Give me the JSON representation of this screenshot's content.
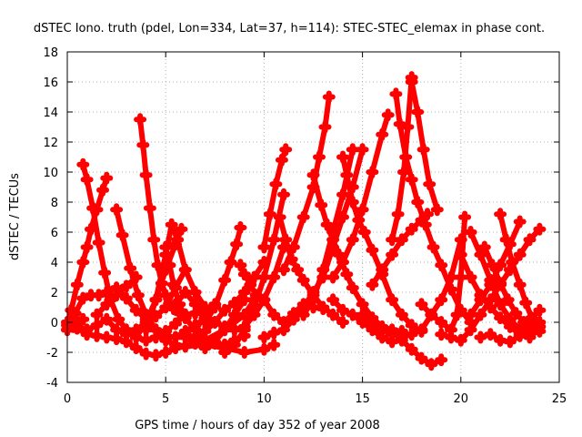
{
  "chart_data": {
    "type": "scatter",
    "title": "dSTEC Iono. truth (pdel, Lon=334, Lat=37, h=114): STEC-STEC_elemax in phase cont.",
    "xlabel": "GPS time / hours of day 352 of year 2008",
    "ylabel": "dSTEC  / TECUs",
    "xlim": [
      0,
      25
    ],
    "ylim": [
      -4,
      18
    ],
    "xticks": [
      "0",
      "5",
      "10",
      "15",
      "20",
      "25"
    ],
    "yticks": [
      "-4",
      "-2",
      "0",
      "2",
      "4",
      "6",
      "8",
      "10",
      "12",
      "14",
      "16",
      "18"
    ],
    "grid": true,
    "marker_color": "#ff0000",
    "series": [
      {
        "x": [
          0.0,
          0.2,
          0.5,
          0.8,
          1.0,
          1.2,
          1.5,
          1.8,
          2.0
        ],
        "y": [
          -0.2,
          0.8,
          2.5,
          4.0,
          5.0,
          6.2,
          7.5,
          8.8,
          9.6
        ]
      },
      {
        "x": [
          0.8,
          1.0,
          1.3,
          1.6,
          1.9,
          2.2,
          2.6,
          3.0,
          3.5,
          4.0,
          4.5,
          5.0,
          5.5,
          6.0,
          6.5
        ],
        "y": [
          10.5,
          9.5,
          7.6,
          5.3,
          3.3,
          1.5,
          0.2,
          -0.5,
          -1.0,
          -1.2,
          -1.0,
          -0.6,
          -0.1,
          0.5,
          0.6
        ]
      },
      {
        "x": [
          0.0,
          0.5,
          1.0,
          1.5,
          2.0,
          2.5,
          3.0,
          3.5,
          4.0,
          4.5,
          5.0,
          5.5,
          6.0
        ],
        "y": [
          0.0,
          -0.3,
          -0.5,
          -0.2,
          0.2,
          -0.5,
          -0.8,
          -0.5,
          0.0,
          0.4,
          1.0,
          2.3,
          3.5
        ]
      },
      {
        "x": [
          0.0,
          0.4,
          0.8,
          1.2,
          1.6,
          2.0,
          2.5,
          3.0,
          3.5,
          4.0,
          4.5,
          5.0,
          5.5,
          6.0,
          6.5,
          7.0,
          7.5
        ],
        "y": [
          -0.5,
          0.6,
          1.6,
          1.8,
          1.8,
          2.0,
          2.3,
          1.6,
          0.8,
          0.2,
          -0.5,
          -0.9,
          -1.0,
          -0.6,
          -0.2,
          0.3,
          1.2
        ]
      },
      {
        "x": [
          0.0,
          0.3,
          0.6,
          0.8
        ],
        "y": [
          -0.5,
          -0.3,
          0.0,
          0.2
        ]
      },
      {
        "x": [
          2.5,
          2.8,
          3.2,
          3.6,
          4.0,
          4.5,
          5.0,
          5.5,
          6.0,
          7.0,
          8.0,
          9.0,
          9.5
        ],
        "y": [
          7.5,
          5.8,
          3.6,
          1.8,
          0.5,
          -0.5,
          -1.2,
          -1.5,
          -1.6,
          -1.2,
          -0.5,
          0.5,
          1.5
        ]
      },
      {
        "x": [
          1.5,
          2.0,
          2.5,
          3.0,
          3.5
        ],
        "y": [
          0.5,
          1.2,
          1.8,
          2.4,
          3.0
        ]
      },
      {
        "x": [
          3.7,
          3.85,
          4.0,
          4.2,
          4.4,
          4.6,
          4.8,
          5.0,
          5.2,
          5.4,
          5.7,
          6.0,
          6.5,
          7.0
        ],
        "y": [
          13.5,
          11.8,
          9.8,
          7.6,
          5.5,
          3.8,
          2.6,
          1.8,
          1.3,
          0.9,
          0.6,
          0.5,
          0.6,
          0.8
        ]
      },
      {
        "x": [
          0.0,
          0.5,
          1.0,
          1.5,
          2.0,
          2.5,
          3.0,
          3.5,
          4.0,
          4.5,
          5.0,
          5.5,
          6.0,
          7.0,
          8.0,
          9.0,
          10.0,
          10.5
        ],
        "y": [
          0.0,
          -0.4,
          -0.8,
          -0.9,
          -1.0,
          -1.1,
          -1.3,
          -1.7,
          -2.1,
          -2.2,
          -2.0,
          -1.7,
          -1.6,
          -1.5,
          -1.7,
          -2.0,
          -1.8,
          -1.5
        ]
      },
      {
        "x": [
          3.5,
          4.0,
          4.5,
          5.0,
          5.3,
          5.6,
          6.0,
          6.5,
          7.0
        ],
        "y": [
          -1.0,
          0.0,
          1.5,
          4.5,
          6.5,
          5.5,
          3.5,
          2.0,
          1.0
        ]
      },
      {
        "x": [
          4.0,
          4.5,
          5.0,
          5.5,
          5.8
        ],
        "y": [
          -0.5,
          1.5,
          3.5,
          5.2,
          6.2
        ]
      },
      {
        "x": [
          5.0,
          5.2,
          5.4,
          5.7,
          6.0,
          6.5,
          7.0,
          7.5,
          8.0,
          8.5,
          9.0
        ],
        "y": [
          5.0,
          3.8,
          2.5,
          1.2,
          0.3,
          -0.5,
          -1.2,
          -1.4,
          -1.5,
          -1.2,
          -0.9
        ]
      },
      {
        "x": [
          5.5,
          6.0,
          6.5,
          7.0,
          7.5,
          8.0,
          8.5,
          9.0,
          9.5,
          10.0,
          10.5,
          11.0
        ],
        "y": [
          1.2,
          2.0,
          1.2,
          0.5,
          0.0,
          -0.3,
          -0.5,
          -0.3,
          0.5,
          1.5,
          3.0,
          5.0
        ]
      },
      {
        "x": [
          6.0,
          6.5,
          7.0,
          7.5,
          8.0,
          8.5,
          9.0
        ],
        "y": [
          -1.0,
          -1.4,
          -1.7,
          -1.3,
          -0.5,
          0.5,
          1.5
        ]
      },
      {
        "x": [
          7.0,
          7.5,
          8.0,
          8.3,
          8.6,
          8.8
        ],
        "y": [
          0.0,
          1.0,
          2.8,
          4.0,
          5.2,
          6.3
        ]
      },
      {
        "x": [
          6.0,
          6.5,
          7.0,
          7.5,
          8.0,
          8.5,
          9.0,
          9.5,
          10.0
        ],
        "y": [
          -0.8,
          -1.0,
          -0.6,
          0.0,
          0.8,
          1.3,
          2.0,
          3.0,
          4.0
        ]
      },
      {
        "x": [
          8.8,
          9.0,
          9.3,
          9.6,
          10.0,
          10.5,
          11.0,
          11.5,
          12.0,
          12.5,
          13.0
        ],
        "y": [
          3.8,
          3.2,
          2.5,
          1.8,
          1.5,
          0.5,
          0.0,
          0.6,
          1.2,
          1.0,
          0.9
        ]
      },
      {
        "x": [
          8.0,
          8.5,
          9.0,
          9.5,
          10.0,
          10.5,
          11.0
        ],
        "y": [
          -2.0,
          -1.5,
          -0.5,
          1.0,
          3.0,
          5.5,
          8.5
        ]
      },
      {
        "x": [
          10.0,
          10.3,
          10.6,
          10.9,
          11.1
        ],
        "y": [
          5.0,
          7.2,
          9.2,
          10.8,
          11.5
        ]
      },
      {
        "x": [
          10.8,
          11.1,
          11.4,
          11.7,
          12.0,
          12.5,
          13.0,
          13.5,
          14.0
        ],
        "y": [
          7.0,
          5.5,
          4.2,
          3.5,
          2.8,
          1.8,
          1.0,
          0.5,
          0.0
        ]
      },
      {
        "x": [
          11.0,
          11.5,
          12.0,
          12.5,
          12.8,
          13.1,
          13.3
        ],
        "y": [
          3.5,
          5.0,
          7.0,
          9.0,
          11.0,
          13.0,
          15.0
        ]
      },
      {
        "x": [
          10.0,
          10.5,
          11.0,
          11.5,
          12.0,
          12.5,
          13.0,
          13.5,
          14.0,
          14.5,
          15.0
        ],
        "y": [
          -1.0,
          -0.7,
          -0.5,
          0.2,
          1.0,
          2.0,
          3.0,
          5.0,
          7.0,
          9.0,
          11.5
        ]
      },
      {
        "x": [
          12.5,
          12.9,
          13.2,
          13.5,
          13.8,
          14.2,
          14.5,
          15.0,
          15.5,
          16.0,
          16.5,
          17.0
        ],
        "y": [
          9.8,
          7.8,
          6.5,
          5.5,
          4.5,
          3.2,
          2.3,
          1.2,
          0.3,
          -0.3,
          -0.5,
          -0.6
        ]
      },
      {
        "x": [
          12.0,
          12.5,
          13.0,
          13.5,
          14.0,
          14.5
        ],
        "y": [
          0.5,
          1.5,
          3.5,
          6.0,
          8.5,
          11.5
        ]
      },
      {
        "x": [
          13.5,
          14.0,
          14.5,
          15.0,
          15.5,
          16.0,
          16.5,
          17.0,
          17.5,
          18.0,
          18.5,
          19.0
        ],
        "y": [
          1.5,
          0.8,
          0.5,
          0.0,
          -0.5,
          -1.0,
          -1.3,
          -1.2,
          -1.8,
          -2.4,
          -2.8,
          -2.5
        ]
      },
      {
        "x": [
          14.0,
          14.2,
          14.5,
          14.8,
          15.1,
          15.5,
          16.0,
          16.5,
          17.0,
          17.5,
          18.0
        ],
        "y": [
          11.0,
          9.8,
          8.0,
          6.8,
          6.0,
          4.8,
          3.2,
          1.5,
          0.5,
          -0.2,
          -0.6
        ]
      },
      {
        "x": [
          13.5,
          14.0,
          14.5,
          15.0,
          15.5,
          16.0,
          16.3
        ],
        "y": [
          3.0,
          4.0,
          5.5,
          7.5,
          10.0,
          12.5,
          13.8
        ]
      },
      {
        "x": [
          15.0,
          15.5,
          16.0,
          16.5,
          17.0,
          17.5,
          18.0,
          18.5,
          19.0,
          19.5,
          20.0
        ],
        "y": [
          0.5,
          -0.2,
          -0.5,
          -0.8,
          -1.0,
          -0.8,
          -0.5,
          0.5,
          1.5,
          3.0,
          5.5
        ]
      },
      {
        "x": [
          16.7,
          16.9,
          17.2,
          17.5,
          17.8,
          18.2,
          18.6,
          19.0,
          19.5,
          20.0,
          20.5
        ],
        "y": [
          15.2,
          13.2,
          11.0,
          9.5,
          8.0,
          6.5,
          5.0,
          3.8,
          2.2,
          0.8,
          0.0
        ]
      },
      {
        "x": [
          16.5,
          16.8,
          17.1,
          17.3,
          17.5
        ],
        "y": [
          5.5,
          7.2,
          10.0,
          13.0,
          16.3
        ]
      },
      {
        "x": [
          17.5,
          17.8,
          18.1,
          18.4,
          18.8
        ],
        "y": [
          16.0,
          14.0,
          11.5,
          9.2,
          7.5
        ]
      },
      {
        "x": [
          15.5,
          16.0,
          16.5,
          17.0,
          17.5,
          18.0,
          18.3
        ],
        "y": [
          2.5,
          3.5,
          4.5,
          5.5,
          6.2,
          6.8,
          7.2
        ]
      },
      {
        "x": [
          18.0,
          18.5,
          19.0,
          19.5,
          19.8,
          20.0,
          20.2
        ],
        "y": [
          1.2,
          0.5,
          0.0,
          -0.5,
          0.5,
          3.0,
          7.0
        ]
      },
      {
        "x": [
          19.0,
          19.5,
          20.0,
          20.5,
          21.0,
          21.5,
          22.0,
          22.5,
          23.0,
          23.5,
          24.0
        ],
        "y": [
          -0.8,
          -1.0,
          -1.2,
          -0.5,
          0.5,
          1.5,
          2.5,
          3.5,
          4.5,
          5.5,
          6.2
        ]
      },
      {
        "x": [
          20.0,
          20.5,
          21.0,
          21.5,
          22.0,
          22.5,
          23.0,
          23.5
        ],
        "y": [
          4.5,
          3.0,
          1.8,
          1.0,
          0.3,
          -0.3,
          -0.8,
          -1.0
        ]
      },
      {
        "x": [
          20.5,
          21.0,
          21.5,
          22.0,
          22.5,
          23.0,
          23.5,
          24.0
        ],
        "y": [
          6.0,
          4.5,
          2.8,
          1.2,
          0.2,
          -0.5,
          -0.8,
          -0.6
        ]
      },
      {
        "x": [
          21.2,
          21.6,
          22.0,
          22.4,
          22.8,
          23.2,
          23.6,
          24.0
        ],
        "y": [
          5.0,
          3.8,
          2.6,
          1.5,
          0.6,
          0.0,
          -0.4,
          -0.3
        ]
      },
      {
        "x": [
          22.0,
          22.3,
          22.6,
          23.0,
          23.3,
          23.6,
          24.0
        ],
        "y": [
          7.2,
          5.5,
          4.0,
          2.5,
          1.3,
          0.3,
          0.8
        ]
      },
      {
        "x": [
          20.5,
          21.0,
          21.5,
          22.0,
          22.5,
          23.0
        ],
        "y": [
          0.5,
          1.5,
          2.5,
          3.8,
          5.2,
          6.7
        ]
      },
      {
        "x": [
          21.0,
          21.5,
          22.0,
          22.5,
          23.0,
          23.5,
          24.0
        ],
        "y": [
          -1.0,
          -0.8,
          -1.2,
          -1.3,
          -0.9,
          -0.5,
          0.0
        ]
      }
    ]
  }
}
